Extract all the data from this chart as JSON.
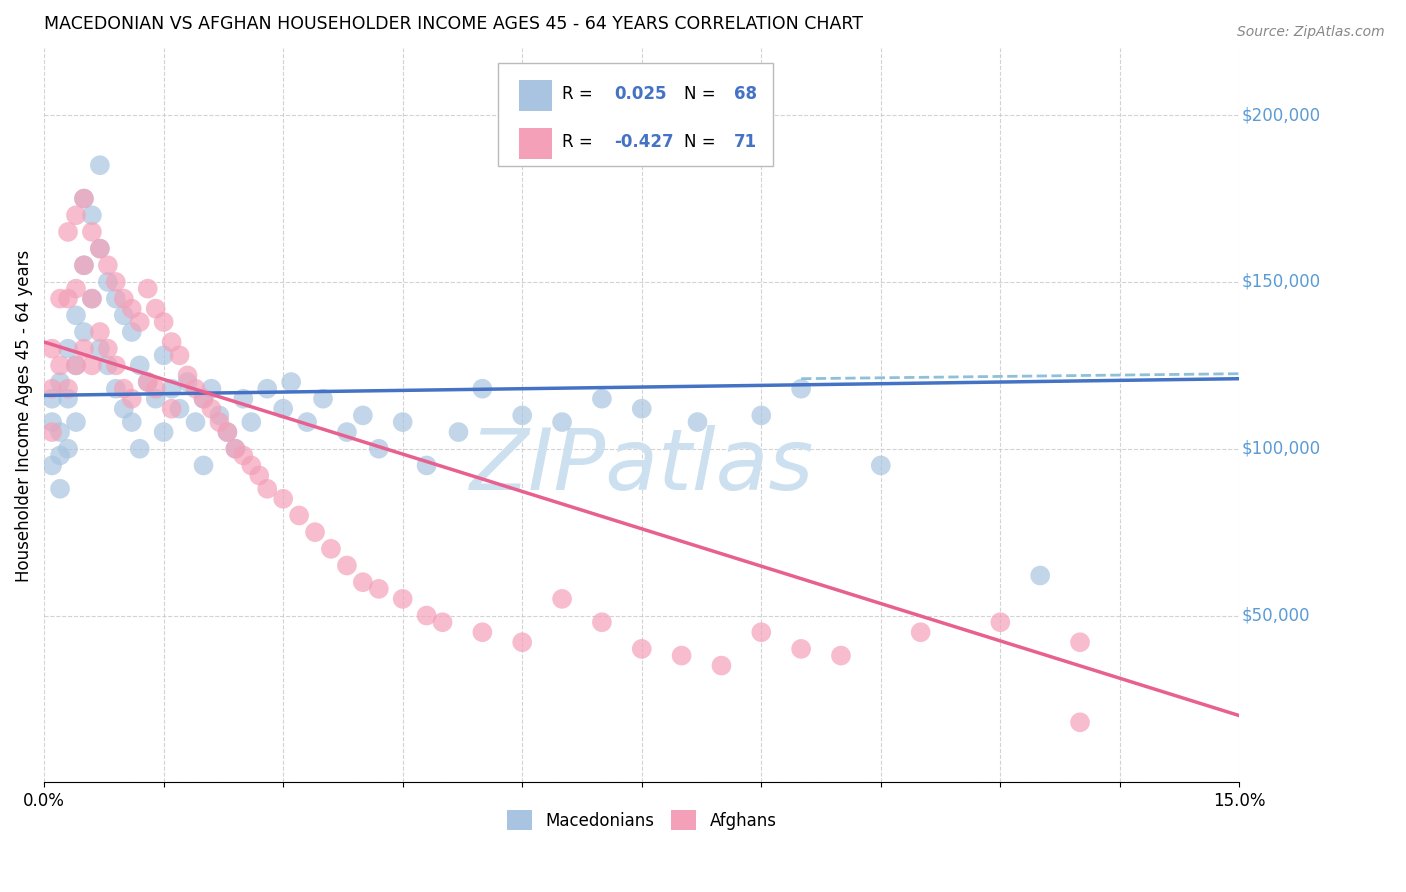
{
  "title": "MACEDONIAN VS AFGHAN HOUSEHOLDER INCOME AGES 45 - 64 YEARS CORRELATION CHART",
  "source": "Source: ZipAtlas.com",
  "ylabel": "Householder Income Ages 45 - 64 years",
  "legend_macedonian": "Macedonians",
  "legend_afghan": "Afghans",
  "macedonian_color": "#a8c4e0",
  "afghan_color": "#f4a0b8",
  "macedonian_line_color": "#4472c4",
  "afghan_line_color": "#e86090",
  "dashed_line_color": "#90c0d8",
  "ytick_color": "#5b9bd5",
  "grid_color": "#c8c8c8",
  "watermark_color": "#cce0f0",
  "background_color": "#ffffff",
  "xlim": [
    0.0,
    0.15
  ],
  "ylim": [
    0,
    220000
  ],
  "yticks": [
    0,
    50000,
    100000,
    150000,
    200000
  ],
  "r_mac": "0.025",
  "n_mac": "68",
  "r_afg": "-0.427",
  "n_afg": "71",
  "macedonian_trend_x": [
    0.0,
    0.15
  ],
  "macedonian_trend_y": [
    116000,
    121000
  ],
  "afghan_trend_x": [
    0.0,
    0.15
  ],
  "afghan_trend_y": [
    132000,
    20000
  ],
  "dashed_trend_x": [
    0.095,
    0.15
  ],
  "dashed_trend_y": [
    121000,
    122500
  ],
  "mac_x": [
    0.001,
    0.001,
    0.001,
    0.002,
    0.002,
    0.002,
    0.002,
    0.003,
    0.003,
    0.003,
    0.004,
    0.004,
    0.004,
    0.005,
    0.005,
    0.005,
    0.006,
    0.006,
    0.007,
    0.007,
    0.007,
    0.008,
    0.008,
    0.009,
    0.009,
    0.01,
    0.01,
    0.011,
    0.011,
    0.012,
    0.012,
    0.013,
    0.014,
    0.015,
    0.015,
    0.016,
    0.017,
    0.018,
    0.019,
    0.02,
    0.02,
    0.021,
    0.022,
    0.023,
    0.024,
    0.025,
    0.026,
    0.028,
    0.03,
    0.031,
    0.033,
    0.035,
    0.038,
    0.04,
    0.042,
    0.045,
    0.048,
    0.052,
    0.055,
    0.06,
    0.065,
    0.07,
    0.075,
    0.082,
    0.09,
    0.095,
    0.105,
    0.125
  ],
  "mac_y": [
    115000,
    108000,
    95000,
    120000,
    105000,
    98000,
    88000,
    130000,
    115000,
    100000,
    140000,
    125000,
    108000,
    175000,
    155000,
    135000,
    170000,
    145000,
    185000,
    160000,
    130000,
    150000,
    125000,
    145000,
    118000,
    140000,
    112000,
    135000,
    108000,
    125000,
    100000,
    120000,
    115000,
    128000,
    105000,
    118000,
    112000,
    120000,
    108000,
    115000,
    95000,
    118000,
    110000,
    105000,
    100000,
    115000,
    108000,
    118000,
    112000,
    120000,
    108000,
    115000,
    105000,
    110000,
    100000,
    108000,
    95000,
    105000,
    118000,
    110000,
    108000,
    115000,
    112000,
    108000,
    110000,
    118000,
    95000,
    62000
  ],
  "afg_x": [
    0.001,
    0.001,
    0.001,
    0.002,
    0.002,
    0.003,
    0.003,
    0.003,
    0.004,
    0.004,
    0.004,
    0.005,
    0.005,
    0.005,
    0.006,
    0.006,
    0.006,
    0.007,
    0.007,
    0.008,
    0.008,
    0.009,
    0.009,
    0.01,
    0.01,
    0.011,
    0.011,
    0.012,
    0.013,
    0.013,
    0.014,
    0.014,
    0.015,
    0.016,
    0.016,
    0.017,
    0.018,
    0.019,
    0.02,
    0.021,
    0.022,
    0.023,
    0.024,
    0.025,
    0.026,
    0.027,
    0.028,
    0.03,
    0.032,
    0.034,
    0.036,
    0.038,
    0.04,
    0.042,
    0.045,
    0.048,
    0.05,
    0.055,
    0.06,
    0.065,
    0.07,
    0.075,
    0.08,
    0.085,
    0.09,
    0.095,
    0.1,
    0.11,
    0.12,
    0.13,
    0.13
  ],
  "afg_y": [
    130000,
    118000,
    105000,
    145000,
    125000,
    165000,
    145000,
    118000,
    170000,
    148000,
    125000,
    175000,
    155000,
    130000,
    165000,
    145000,
    125000,
    160000,
    135000,
    155000,
    130000,
    150000,
    125000,
    145000,
    118000,
    142000,
    115000,
    138000,
    148000,
    120000,
    142000,
    118000,
    138000,
    132000,
    112000,
    128000,
    122000,
    118000,
    115000,
    112000,
    108000,
    105000,
    100000,
    98000,
    95000,
    92000,
    88000,
    85000,
    80000,
    75000,
    70000,
    65000,
    60000,
    58000,
    55000,
    50000,
    48000,
    45000,
    42000,
    55000,
    48000,
    40000,
    38000,
    35000,
    45000,
    40000,
    38000,
    45000,
    48000,
    42000,
    18000
  ]
}
